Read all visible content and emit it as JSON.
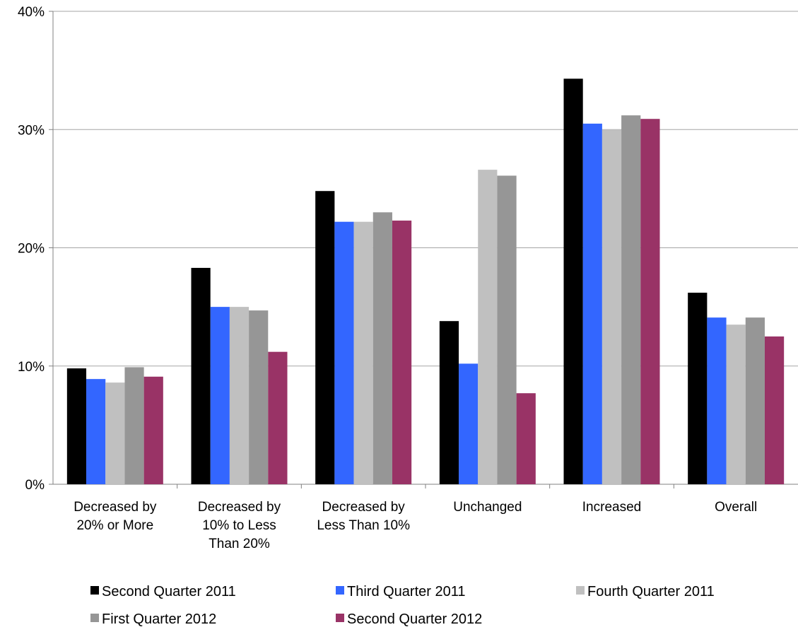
{
  "chart_data": {
    "type": "bar",
    "title": "",
    "xlabel": "",
    "ylabel": "",
    "ylim": [
      0,
      40
    ],
    "yticks": [
      "0%",
      "10%",
      "20%",
      "30%",
      "40%"
    ],
    "ytick_values": [
      0,
      10,
      20,
      30,
      40
    ],
    "grid": true,
    "legend_position": "bottom",
    "categories": [
      [
        "Decreased by",
        "20% or More"
      ],
      [
        "Decreased by",
        "10% to Less",
        "Than 20%"
      ],
      [
        "Decreased by",
        "Less Than 10%"
      ],
      [
        "Unchanged"
      ],
      [
        "Increased"
      ],
      [
        "Overall"
      ]
    ],
    "series": [
      {
        "name": "Second Quarter 2011",
        "color": "#000000",
        "values": [
          9.8,
          18.3,
          24.8,
          13.8,
          34.3,
          16.2
        ]
      },
      {
        "name": "Third Quarter 2011",
        "color": "#3366ff",
        "values": [
          8.9,
          15.0,
          22.2,
          10.2,
          30.5,
          14.1
        ]
      },
      {
        "name": "Fourth Quarter 2011",
        "color": "#c0c0c0",
        "values": [
          8.6,
          15.0,
          22.2,
          26.6,
          30.0,
          13.5
        ]
      },
      {
        "name": "First Quarter 2012",
        "color": "#969696",
        "values": [
          9.9,
          14.7,
          23.0,
          26.1,
          31.2,
          14.1
        ]
      },
      {
        "name": "Second Quarter 2012",
        "color": "#993366",
        "values": [
          9.1,
          11.2,
          22.3,
          7.7,
          30.9,
          12.5
        ]
      }
    ]
  }
}
